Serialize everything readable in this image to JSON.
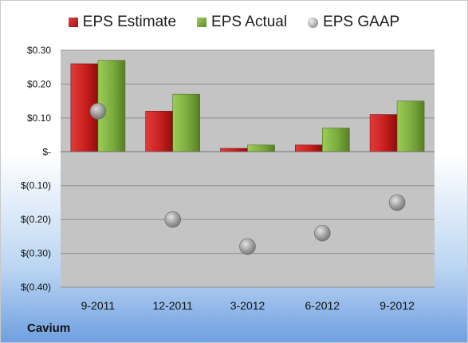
{
  "company": "Cavium",
  "legend": {
    "estimate": "EPS Estimate",
    "actual": "EPS Actual",
    "gaap": "EPS GAAP"
  },
  "colors": {
    "estimate": "#c81e1e",
    "actual": "#7bab3c",
    "gaap": "#a0a0a0",
    "plot_bg": "#c4c4c4"
  },
  "chart_data": {
    "type": "bar",
    "categories": [
      "9-2011",
      "12-2011",
      "3-2012",
      "6-2012",
      "9-2012"
    ],
    "series": [
      {
        "name": "EPS Estimate",
        "values": [
          0.26,
          0.12,
          0.01,
          0.02,
          0.11
        ]
      },
      {
        "name": "EPS Actual",
        "values": [
          0.27,
          0.17,
          0.02,
          0.07,
          0.15
        ]
      },
      {
        "name": "EPS GAAP",
        "type": "scatter",
        "values": [
          0.12,
          -0.2,
          -0.28,
          -0.24,
          -0.15
        ]
      }
    ],
    "ylim": [
      -0.4,
      0.3
    ],
    "yticks": [
      0.3,
      0.2,
      0.1,
      0,
      -0.1,
      -0.2,
      -0.3,
      -0.4
    ],
    "ytick_labels": [
      "$0.30",
      "$0.20",
      "$0.10",
      "$-",
      "$(0.10)",
      "$(0.20)",
      "$(0.30)",
      "$(0.40)"
    ],
    "grid": true,
    "legend_position": "top"
  }
}
